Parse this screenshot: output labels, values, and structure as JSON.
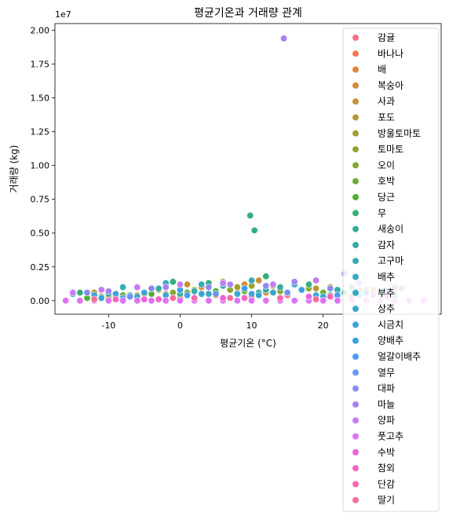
{
  "chart_data": {
    "type": "scatter",
    "title": "평균기온과 거래량 관계",
    "xlabel": "평균기온 (°C)",
    "ylabel": "거래량 (kg)",
    "y_offset_label": "1e7",
    "xlim": [
      -17.5,
      36.5
    ],
    "ylim": [
      -0.1,
      2.05
    ],
    "y_scale_note": "values in units of 1e7",
    "xticks": [
      -10,
      0,
      10,
      20
    ],
    "xtick_labels": [
      "-10",
      "0",
      "10",
      "20"
    ],
    "yticks": [
      0.0,
      0.25,
      0.5,
      0.75,
      1.0,
      1.25,
      1.5,
      1.75,
      2.0
    ],
    "ytick_labels": [
      "0.00",
      "0.25",
      "0.50",
      "0.75",
      "1.00",
      "1.25",
      "1.50",
      "1.75",
      "2.00"
    ],
    "grid": false,
    "legend_placement": "right, overlapping plot",
    "legend_title": "",
    "series": [
      {
        "name": "감귤",
        "color": "#f77189",
        "points": [
          [
            -12,
            0.02
          ],
          [
            -5,
            0.05
          ],
          [
            2,
            0.08
          ],
          [
            8,
            0.06
          ],
          [
            15,
            0.04
          ],
          [
            22,
            0.03
          ]
        ]
      },
      {
        "name": "바나나",
        "color": "#f7754f",
        "points": [
          [
            -8,
            0.01
          ],
          [
            0,
            0.02
          ],
          [
            10,
            0.03
          ],
          [
            20,
            0.02
          ],
          [
            28,
            0.01
          ]
        ]
      },
      {
        "name": "배",
        "color": "#e68332",
        "points": [
          [
            -10,
            0.03
          ],
          [
            -2,
            0.05
          ],
          [
            5,
            0.04
          ],
          [
            12,
            0.06
          ],
          [
            24,
            0.03
          ]
        ]
      },
      {
        "name": "복숭아",
        "color": "#d58c32",
        "points": [
          [
            -6,
            0.04
          ],
          [
            3,
            0.1
          ],
          [
            9,
            0.12
          ],
          [
            18,
            0.09
          ],
          [
            26,
            0.08
          ],
          [
            30,
            0.05
          ]
        ]
      },
      {
        "name": "사과",
        "color": "#c39532",
        "points": [
          [
            -12,
            0.06
          ],
          [
            -4,
            0.09
          ],
          [
            1,
            0.12
          ],
          [
            6,
            0.14
          ],
          [
            11,
            0.15
          ],
          [
            16,
            0.12
          ],
          [
            21,
            0.1
          ],
          [
            27,
            0.08
          ]
        ]
      },
      {
        "name": "포도",
        "color": "#b59a32",
        "points": [
          [
            -9,
            0.05
          ],
          [
            -3,
            0.08
          ],
          [
            4,
            0.1
          ],
          [
            13,
            0.11
          ],
          [
            19,
            0.09
          ],
          [
            25,
            0.07
          ]
        ]
      },
      {
        "name": "방울토마토",
        "color": "#a59f31",
        "points": [
          [
            -7,
            0.04
          ],
          [
            0,
            0.07
          ],
          [
            8,
            0.1
          ],
          [
            17,
            0.08
          ],
          [
            23,
            0.06
          ]
        ]
      },
      {
        "name": "토마토",
        "color": "#96a331",
        "points": [
          [
            -5,
            0.05
          ],
          [
            2,
            0.08
          ],
          [
            10,
            0.11
          ],
          [
            18,
            0.09
          ],
          [
            28,
            0.06
          ]
        ]
      },
      {
        "name": "오이",
        "color": "#86a731",
        "points": [
          [
            -11,
            0.03
          ],
          [
            -1,
            0.06
          ],
          [
            7,
            0.08
          ],
          [
            14,
            0.07
          ],
          [
            22,
            0.05
          ]
        ]
      },
      {
        "name": "호박",
        "color": "#6fac31",
        "points": [
          [
            -8,
            0.04
          ],
          [
            1,
            0.06
          ],
          [
            9,
            0.07
          ],
          [
            20,
            0.06
          ],
          [
            29,
            0.04
          ]
        ]
      },
      {
        "name": "당근",
        "color": "#4fb031",
        "points": [
          [
            -13,
            0.02
          ],
          [
            -4,
            0.05
          ],
          [
            5,
            0.07
          ],
          [
            15,
            0.06
          ],
          [
            25,
            0.04
          ]
        ]
      },
      {
        "name": "무",
        "color": "#33b07a",
        "points": [
          [
            -14,
            0.06
          ],
          [
            -6,
            0.1
          ],
          [
            -1,
            0.14
          ],
          [
            4,
            0.13
          ],
          [
            9.8,
            0.63
          ],
          [
            10.4,
            0.52
          ],
          [
            12,
            0.18
          ],
          [
            18,
            0.12
          ],
          [
            24,
            0.1
          ]
        ]
      },
      {
        "name": "새송이",
        "color": "#34ae91",
        "points": [
          [
            -9,
            0.03
          ],
          [
            0,
            0.05
          ],
          [
            11,
            0.06
          ],
          [
            21,
            0.04
          ]
        ]
      },
      {
        "name": "감자",
        "color": "#35aca4",
        "points": [
          [
            -10,
            0.05
          ],
          [
            -3,
            0.09
          ],
          [
            6,
            0.11
          ],
          [
            14,
            0.1
          ],
          [
            22,
            0.08
          ],
          [
            28,
            0.06
          ]
        ]
      },
      {
        "name": "고구마",
        "color": "#36abb0",
        "points": [
          [
            -7,
            0.04
          ],
          [
            2,
            0.07
          ],
          [
            12,
            0.08
          ],
          [
            23,
            0.06
          ]
        ]
      },
      {
        "name": "배추",
        "color": "#37aabb",
        "points": [
          [
            -15,
            0.05
          ],
          [
            -8,
            0.1
          ],
          [
            -2,
            0.13
          ],
          [
            3,
            0.12
          ],
          [
            10,
            0.15
          ],
          [
            16,
            0.12
          ],
          [
            24,
            0.1
          ]
        ]
      },
      {
        "name": "부추",
        "color": "#38a8c6",
        "points": [
          [
            -6,
            0.03
          ],
          [
            4,
            0.05
          ],
          [
            13,
            0.06
          ],
          [
            25,
            0.04
          ]
        ]
      },
      {
        "name": "상추",
        "color": "#39a7d0",
        "points": [
          [
            -11,
            0.02
          ],
          [
            -2,
            0.04
          ],
          [
            8,
            0.05
          ],
          [
            19,
            0.04
          ],
          [
            30,
            0.03
          ]
        ]
      },
      {
        "name": "시금치",
        "color": "#3aa4d9",
        "points": [
          [
            -12,
            0.04
          ],
          [
            -5,
            0.06
          ],
          [
            3,
            0.05
          ],
          [
            11,
            0.04
          ],
          [
            20,
            0.03
          ]
        ]
      },
      {
        "name": "양배추",
        "color": "#3ba1e4",
        "points": [
          [
            -9,
            0.05
          ],
          [
            0,
            0.08
          ],
          [
            9,
            0.09
          ],
          [
            17,
            0.08
          ],
          [
            26,
            0.06
          ]
        ]
      },
      {
        "name": "얼갈이배추",
        "color": "#4a9cf0",
        "points": [
          [
            -8,
            0.02
          ],
          [
            1,
            0.04
          ],
          [
            10,
            0.05
          ],
          [
            22,
            0.04
          ]
        ]
      },
      {
        "name": "열무",
        "color": "#6b93f3",
        "points": [
          [
            -7,
            0.03
          ],
          [
            5,
            0.05
          ],
          [
            15,
            0.06
          ],
          [
            27,
            0.04
          ]
        ]
      },
      {
        "name": "대파",
        "color": "#8b8af3",
        "points": [
          [
            -13,
            0.06
          ],
          [
            -4,
            0.09
          ],
          [
            4,
            0.1
          ],
          [
            12,
            0.11
          ],
          [
            21,
            0.09
          ],
          [
            29,
            0.07
          ]
        ]
      },
      {
        "name": "마늘",
        "color": "#a583f3",
        "points": [
          [
            14.5,
            1.94
          ],
          [
            -10,
            0.07
          ],
          [
            -2,
            0.1
          ],
          [
            7,
            0.12
          ],
          [
            16,
            0.14
          ],
          [
            23,
            0.2
          ],
          [
            30,
            0.1
          ]
        ]
      },
      {
        "name": "양파",
        "color": "#c47cf3",
        "points": [
          [
            -15,
            0.06
          ],
          [
            -11,
            0.08
          ],
          [
            -6,
            0.1
          ],
          [
            0,
            0.12
          ],
          [
            6,
            0.13
          ],
          [
            13,
            0.12
          ],
          [
            19,
            0.15
          ],
          [
            25,
            0.13
          ],
          [
            31,
            0.09
          ]
        ]
      },
      {
        "name": "풋고추",
        "color": "#dd73f3",
        "points": [
          [
            -16,
            0.0
          ],
          [
            -14,
            0.0
          ],
          [
            -12,
            0.0
          ],
          [
            -10,
            0.0
          ],
          [
            -8,
            0.0
          ],
          [
            -6,
            0.0
          ],
          [
            -4,
            0.0
          ],
          [
            -2,
            0.0
          ],
          [
            0,
            0.0
          ],
          [
            2,
            0.0
          ],
          [
            4,
            0.0
          ],
          [
            6,
            0.0
          ],
          [
            8,
            0.0
          ],
          [
            10,
            0.0
          ],
          [
            12,
            0.0
          ],
          [
            14,
            0.0
          ],
          [
            16,
            0.0
          ],
          [
            18,
            0.0
          ],
          [
            20,
            0.0
          ],
          [
            22,
            0.0
          ],
          [
            24,
            0.0
          ],
          [
            26,
            0.0
          ],
          [
            28,
            0.0
          ],
          [
            30,
            0.0
          ],
          [
            32,
            0.0
          ],
          [
            34,
            0.0
          ]
        ]
      },
      {
        "name": "수박",
        "color": "#f061dd",
        "points": [
          [
            -5,
            0.01
          ],
          [
            6,
            0.02
          ],
          [
            18,
            0.03
          ],
          [
            27,
            0.04
          ]
        ]
      },
      {
        "name": "참외",
        "color": "#f563c5",
        "points": [
          [
            -3,
            0.01
          ],
          [
            9,
            0.02
          ],
          [
            21,
            0.03
          ],
          [
            29,
            0.03
          ]
        ]
      },
      {
        "name": "단감",
        "color": "#f667b0",
        "points": [
          [
            -9,
            0.01
          ],
          [
            2,
            0.02
          ],
          [
            14,
            0.02
          ],
          [
            24,
            0.01
          ]
        ]
      },
      {
        "name": "딸기",
        "color": "#f66d9b",
        "points": [
          [
            -12,
            0.01
          ],
          [
            -1,
            0.02
          ],
          [
            7,
            0.02
          ],
          [
            19,
            0.01
          ]
        ]
      }
    ]
  }
}
